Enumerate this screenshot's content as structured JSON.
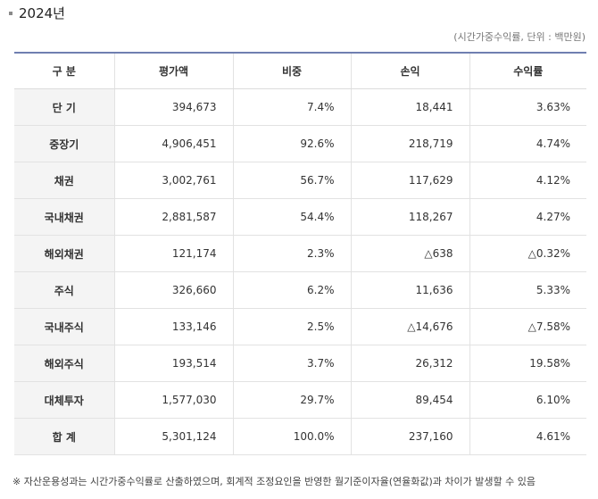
{
  "year_heading": "2024년",
  "unit_note": "(시간가중수익률, 단위 : 백만원)",
  "table": {
    "headers": [
      "구 분",
      "평가액",
      "비중",
      "손익",
      "수익률"
    ],
    "rows": [
      [
        "단 기",
        "394,673",
        "7.4%",
        "18,441",
        "3.63%"
      ],
      [
        "중장기",
        "4,906,451",
        "92.6%",
        "218,719",
        "4.74%"
      ],
      [
        "채권",
        "3,002,761",
        "56.7%",
        "117,629",
        "4.12%"
      ],
      [
        "국내채권",
        "2,881,587",
        "54.4%",
        "118,267",
        "4.27%"
      ],
      [
        "해외채권",
        "121,174",
        "2.3%",
        "△638",
        "△0.32%"
      ],
      [
        "주식",
        "326,660",
        "6.2%",
        "11,636",
        "5.33%"
      ],
      [
        "국내주식",
        "133,146",
        "2.5%",
        "△14,676",
        "△7.58%"
      ],
      [
        "해외주식",
        "193,514",
        "3.7%",
        "26,312",
        "19.58%"
      ],
      [
        "대체투자",
        "1,577,030",
        "29.7%",
        "89,454",
        "6.10%"
      ],
      [
        "합 계",
        "5,301,124",
        "100.0%",
        "237,160",
        "4.61%"
      ]
    ]
  },
  "footnote": "※ 자산운용성과는 시간가중수익률로 산출하였으며, 회계적 조정요인을 반영한 월기준이자율(연율화값)과 차이가 발생할 수 있음"
}
